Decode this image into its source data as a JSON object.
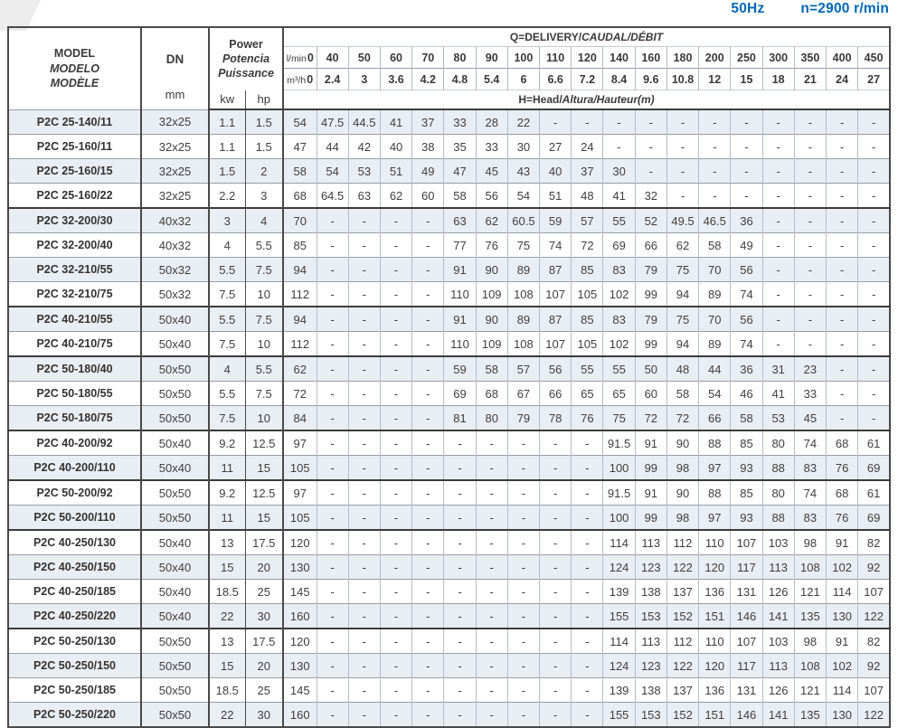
{
  "page_header": {
    "frequency": "50Hz",
    "speed": "n=2900 r/min"
  },
  "table": {
    "model_header": [
      "MODEL",
      "MODELO",
      "MODÈLE"
    ],
    "dn_label": "DN",
    "dn_unit": "mm",
    "power_header": [
      "Power",
      "Potencia",
      "Puissance"
    ],
    "power_unit_kw": "kw",
    "power_unit_hp": "hp",
    "q_title_main": "Q=DELIVERY/",
    "q_title_italic": "CAUDAL/DÉBIT",
    "h_title_main": "H=Head/",
    "h_title_italic": "Altura/Hauteur(m)",
    "lmin_label": "l/min",
    "m3h_label": "m³/h",
    "lmin_values": [
      "0",
      "40",
      "50",
      "60",
      "70",
      "80",
      "90",
      "100",
      "110",
      "120",
      "140",
      "160",
      "180",
      "200",
      "250",
      "300",
      "350",
      "400",
      "450"
    ],
    "m3h_values": [
      "0",
      "2.4",
      "3",
      "3.6",
      "4.2",
      "4.8",
      "5.4",
      "6",
      "6.6",
      "7.2",
      "8.4",
      "9.6",
      "10.8",
      "12",
      "15",
      "18",
      "21",
      "24",
      "27"
    ],
    "rows": [
      {
        "model": "P2C 25-140/11",
        "dn": "32x25",
        "kw": "1.1",
        "hp": "1.5",
        "group_start": false,
        "heads": [
          "54",
          "47.5",
          "44.5",
          "41",
          "37",
          "33",
          "28",
          "22",
          "-",
          "-",
          "-",
          "-",
          "-",
          "-",
          "-",
          "-",
          "-",
          "-",
          "-"
        ]
      },
      {
        "model": "P2C 25-160/11",
        "dn": "32x25",
        "kw": "1.1",
        "hp": "1.5",
        "group_start": false,
        "heads": [
          "47",
          "44",
          "42",
          "40",
          "38",
          "35",
          "33",
          "30",
          "27",
          "24",
          "-",
          "-",
          "-",
          "-",
          "-",
          "-",
          "-",
          "-",
          "-"
        ]
      },
      {
        "model": "P2C 25-160/15",
        "dn": "32x25",
        "kw": "1.5",
        "hp": "2",
        "group_start": false,
        "heads": [
          "58",
          "54",
          "53",
          "51",
          "49",
          "47",
          "45",
          "43",
          "40",
          "37",
          "30",
          "-",
          "-",
          "-",
          "-",
          "-",
          "-",
          "-",
          "-"
        ]
      },
      {
        "model": "P2C 25-160/22",
        "dn": "32x25",
        "kw": "2.2",
        "hp": "3",
        "group_start": false,
        "heads": [
          "68",
          "64.5",
          "63",
          "62",
          "60",
          "58",
          "56",
          "54",
          "51",
          "48",
          "41",
          "32",
          "-",
          "-",
          "-",
          "-",
          "-",
          "-",
          "-"
        ]
      },
      {
        "model": "P2C 32-200/30",
        "dn": "40x32",
        "kw": "3",
        "hp": "4",
        "group_start": true,
        "heads": [
          "70",
          "-",
          "-",
          "-",
          "-",
          "63",
          "62",
          "60.5",
          "59",
          "57",
          "55",
          "52",
          "49.5",
          "46.5",
          "36",
          "-",
          "-",
          "-",
          "-"
        ]
      },
      {
        "model": "P2C 32-200/40",
        "dn": "40x32",
        "kw": "4",
        "hp": "5.5",
        "group_start": false,
        "heads": [
          "85",
          "-",
          "-",
          "-",
          "-",
          "77",
          "76",
          "75",
          "74",
          "72",
          "69",
          "66",
          "62",
          "58",
          "49",
          "-",
          "-",
          "-",
          "-"
        ]
      },
      {
        "model": "P2C 32-210/55",
        "dn": "50x32",
        "kw": "5.5",
        "hp": "7.5",
        "group_start": false,
        "heads": [
          "94",
          "-",
          "-",
          "-",
          "-",
          "91",
          "90",
          "89",
          "87",
          "85",
          "83",
          "79",
          "75",
          "70",
          "56",
          "-",
          "-",
          "-",
          "-"
        ]
      },
      {
        "model": "P2C 32-210/75",
        "dn": "50x32",
        "kw": "7.5",
        "hp": "10",
        "group_start": false,
        "heads": [
          "112",
          "-",
          "-",
          "-",
          "-",
          "110",
          "109",
          "108",
          "107",
          "105",
          "102",
          "99",
          "94",
          "89",
          "74",
          "-",
          "-",
          "-",
          "-"
        ]
      },
      {
        "model": "P2C 40-210/55",
        "dn": "50x40",
        "kw": "5.5",
        "hp": "7.5",
        "group_start": true,
        "heads": [
          "94",
          "-",
          "-",
          "-",
          "-",
          "91",
          "90",
          "89",
          "87",
          "85",
          "83",
          "79",
          "75",
          "70",
          "56",
          "-",
          "-",
          "-",
          "-"
        ]
      },
      {
        "model": "P2C 40-210/75",
        "dn": "50x40",
        "kw": "7.5",
        "hp": "10",
        "group_start": false,
        "heads": [
          "112",
          "-",
          "-",
          "-",
          "-",
          "110",
          "109",
          "108",
          "107",
          "105",
          "102",
          "99",
          "94",
          "89",
          "74",
          "-",
          "-",
          "-",
          "-"
        ]
      },
      {
        "model": "P2C 50-180/40",
        "dn": "50x50",
        "kw": "4",
        "hp": "5.5",
        "group_start": true,
        "heads": [
          "62",
          "-",
          "-",
          "-",
          "-",
          "59",
          "58",
          "57",
          "56",
          "55",
          "55",
          "50",
          "48",
          "44",
          "36",
          "31",
          "23",
          "-",
          "-"
        ]
      },
      {
        "model": "P2C 50-180/55",
        "dn": "50x50",
        "kw": "5.5",
        "hp": "7.5",
        "group_start": false,
        "heads": [
          "72",
          "-",
          "-",
          "-",
          "-",
          "69",
          "68",
          "67",
          "66",
          "65",
          "65",
          "60",
          "58",
          "54",
          "46",
          "41",
          "33",
          "-",
          "-"
        ]
      },
      {
        "model": "P2C 50-180/75",
        "dn": "50x50",
        "kw": "7.5",
        "hp": "10",
        "group_start": false,
        "heads": [
          "84",
          "-",
          "-",
          "-",
          "-",
          "81",
          "80",
          "79",
          "78",
          "76",
          "75",
          "72",
          "72",
          "66",
          "58",
          "53",
          "45",
          "-",
          "-"
        ]
      },
      {
        "model": "P2C 40-200/92",
        "dn": "50x40",
        "kw": "9.2",
        "hp": "12.5",
        "group_start": true,
        "heads": [
          "97",
          "-",
          "-",
          "-",
          "-",
          "-",
          "-",
          "-",
          "-",
          "-",
          "91.5",
          "91",
          "90",
          "88",
          "85",
          "80",
          "74",
          "68",
          "61"
        ]
      },
      {
        "model": "P2C 40-200/110",
        "dn": "50x40",
        "kw": "11",
        "hp": "15",
        "group_start": false,
        "heads": [
          "105",
          "-",
          "-",
          "-",
          "-",
          "-",
          "-",
          "-",
          "-",
          "-",
          "100",
          "99",
          "98",
          "97",
          "93",
          "88",
          "83",
          "76",
          "69"
        ]
      },
      {
        "model": "P2C 50-200/92",
        "dn": "50x50",
        "kw": "9.2",
        "hp": "12.5",
        "group_start": true,
        "heads": [
          "97",
          "-",
          "-",
          "-",
          "-",
          "-",
          "-",
          "-",
          "-",
          "-",
          "91.5",
          "91",
          "90",
          "88",
          "85",
          "80",
          "74",
          "68",
          "61"
        ]
      },
      {
        "model": "P2C 50-200/110",
        "dn": "50x50",
        "kw": "11",
        "hp": "15",
        "group_start": false,
        "heads": [
          "105",
          "-",
          "-",
          "-",
          "-",
          "-",
          "-",
          "-",
          "-",
          "-",
          "100",
          "99",
          "98",
          "97",
          "93",
          "88",
          "83",
          "76",
          "69"
        ]
      },
      {
        "model": "P2C 40-250/130",
        "dn": "50x40",
        "kw": "13",
        "hp": "17.5",
        "group_start": true,
        "heads": [
          "120",
          "-",
          "-",
          "-",
          "-",
          "-",
          "-",
          "-",
          "-",
          "-",
          "114",
          "113",
          "112",
          "110",
          "107",
          "103",
          "98",
          "91",
          "82"
        ]
      },
      {
        "model": "P2C 40-250/150",
        "dn": "50x40",
        "kw": "15",
        "hp": "20",
        "group_start": false,
        "heads": [
          "130",
          "-",
          "-",
          "-",
          "-",
          "-",
          "-",
          "-",
          "-",
          "-",
          "124",
          "123",
          "122",
          "120",
          "117",
          "113",
          "108",
          "102",
          "92"
        ]
      },
      {
        "model": "P2C 40-250/185",
        "dn": "50x40",
        "kw": "18.5",
        "hp": "25",
        "group_start": false,
        "heads": [
          "145",
          "-",
          "-",
          "-",
          "-",
          "-",
          "-",
          "-",
          "-",
          "-",
          "139",
          "138",
          "137",
          "136",
          "131",
          "126",
          "121",
          "114",
          "107"
        ]
      },
      {
        "model": "P2C 40-250/220",
        "dn": "50x40",
        "kw": "22",
        "hp": "30",
        "group_start": false,
        "heads": [
          "160",
          "-",
          "-",
          "-",
          "-",
          "-",
          "-",
          "-",
          "-",
          "-",
          "155",
          "153",
          "152",
          "151",
          "146",
          "141",
          "135",
          "130",
          "122"
        ]
      },
      {
        "model": "P2C 50-250/130",
        "dn": "50x50",
        "kw": "13",
        "hp": "17.5",
        "group_start": true,
        "heads": [
          "120",
          "-",
          "-",
          "-",
          "-",
          "-",
          "-",
          "-",
          "-",
          "-",
          "114",
          "113",
          "112",
          "110",
          "107",
          "103",
          "98",
          "91",
          "82"
        ]
      },
      {
        "model": "P2C 50-250/150",
        "dn": "50x50",
        "kw": "15",
        "hp": "20",
        "group_start": false,
        "heads": [
          "130",
          "-",
          "-",
          "-",
          "-",
          "-",
          "-",
          "-",
          "-",
          "-",
          "124",
          "123",
          "122",
          "120",
          "117",
          "113",
          "108",
          "102",
          "92"
        ]
      },
      {
        "model": "P2C 50-250/185",
        "dn": "50x50",
        "kw": "18.5",
        "hp": "25",
        "group_start": false,
        "heads": [
          "145",
          "-",
          "-",
          "-",
          "-",
          "-",
          "-",
          "-",
          "-",
          "-",
          "139",
          "138",
          "137",
          "136",
          "131",
          "126",
          "121",
          "114",
          "107"
        ]
      },
      {
        "model": "P2C 50-250/220",
        "dn": "50x50",
        "kw": "22",
        "hp": "30",
        "group_start": false,
        "heads": [
          "160",
          "-",
          "-",
          "-",
          "-",
          "-",
          "-",
          "-",
          "-",
          "-",
          "155",
          "153",
          "152",
          "151",
          "146",
          "141",
          "135",
          "130",
          "122"
        ]
      }
    ]
  },
  "colors": {
    "accent_blue": "#0067b4",
    "row_shade": "#e9edf4",
    "border_dark": "#4a4a4a",
    "border_light": "#b6bcc6"
  }
}
